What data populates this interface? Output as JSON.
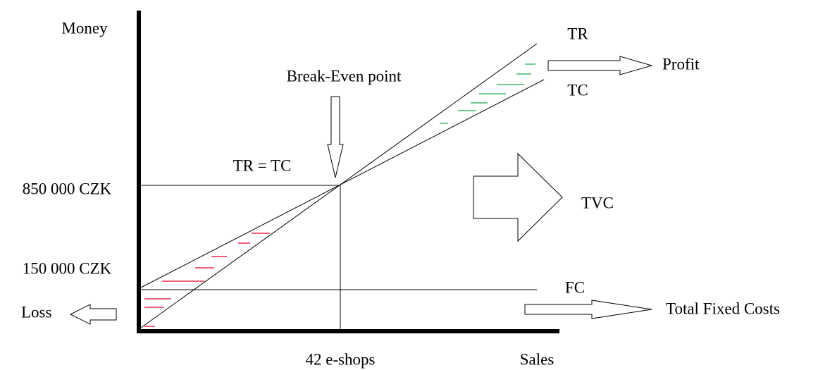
{
  "axes": {
    "y_label": "Money",
    "x_label": "Sales"
  },
  "lines": {
    "tr": "TR",
    "tc": "TC",
    "fc": "FC"
  },
  "labels": {
    "break_even": "Break-Even point",
    "equality": "TR = TC",
    "profit": "Profit",
    "tvc": "TVC",
    "loss": "Loss",
    "total_fixed_costs": "Total Fixed Costs"
  },
  "levels": {
    "break_even_money": "850 000 CZK",
    "fixed_costs_money": "150 000 CZK",
    "break_even_sales": "42 e-shops"
  }
}
